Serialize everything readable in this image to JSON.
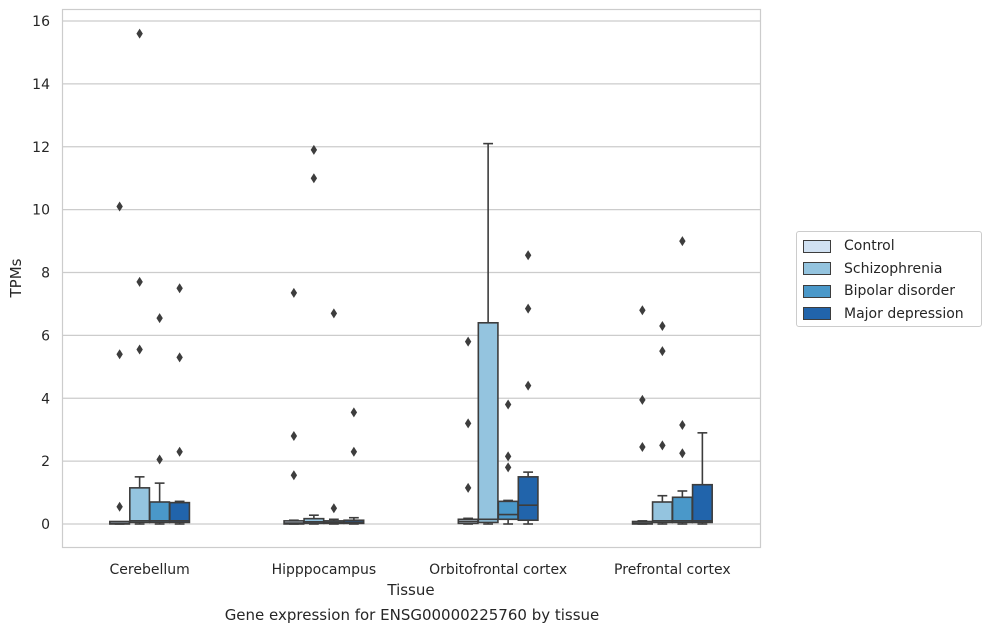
{
  "chart_data": {
    "type": "box",
    "caption": "Gene expression for ENSG00000225760 by tissue",
    "xlabel": "Tissue",
    "ylabel": "TPMs",
    "ylim": [
      -0.75,
      16.4
    ],
    "yticks": [
      0,
      2,
      4,
      6,
      8,
      10,
      12,
      14,
      16
    ],
    "grid": true,
    "legend_position": "right",
    "categories": [
      "Cerebellum",
      "Hipppocampus",
      "Orbitofrontal cortex",
      "Prefrontal cortex"
    ],
    "series": [
      {
        "name": "Control",
        "color": "#d0e1f2",
        "boxes": [
          {
            "q1": 0.0,
            "median": 0.02,
            "q3": 0.05,
            "whislo": 0.0,
            "whishi": 0.05,
            "fliers": [
              0.55,
              5.4,
              10.1
            ]
          },
          {
            "q1": 0.0,
            "median": 0.03,
            "q3": 0.1,
            "whislo": 0.0,
            "whishi": 0.12,
            "fliers": [
              1.55,
              2.8,
              7.35
            ]
          },
          {
            "q1": 0.02,
            "median": 0.08,
            "q3": 0.15,
            "whislo": 0.0,
            "whishi": 0.18,
            "fliers": [
              1.15,
              3.2,
              5.8
            ]
          },
          {
            "q1": 0.0,
            "median": 0.03,
            "q3": 0.08,
            "whislo": 0.0,
            "whishi": 0.1,
            "fliers": [
              2.45,
              3.95,
              6.8
            ]
          }
        ]
      },
      {
        "name": "Schizophrenia",
        "color": "#94c4df",
        "boxes": [
          {
            "q1": 0.05,
            "median": 0.1,
            "q3": 1.15,
            "whislo": 0.0,
            "whishi": 1.5,
            "fliers": [
              5.55,
              7.7,
              15.6
            ]
          },
          {
            "q1": 0.02,
            "median": 0.07,
            "q3": 0.17,
            "whislo": 0.0,
            "whishi": 0.28,
            "fliers": [
              11.0,
              11.9
            ]
          },
          {
            "q1": 0.05,
            "median": 0.15,
            "q3": 6.4,
            "whislo": 0.0,
            "whishi": 12.1,
            "fliers": []
          },
          {
            "q1": 0.05,
            "median": 0.1,
            "q3": 0.7,
            "whislo": 0.0,
            "whishi": 0.9,
            "fliers": [
              2.5,
              5.5,
              6.3
            ]
          }
        ]
      },
      {
        "name": "Bipolar disorder",
        "color": "#4a98c9",
        "boxes": [
          {
            "q1": 0.05,
            "median": 0.1,
            "q3": 0.7,
            "whislo": 0.0,
            "whishi": 1.3,
            "fliers": [
              2.05,
              6.55
            ]
          },
          {
            "q1": 0.02,
            "median": 0.05,
            "q3": 0.1,
            "whislo": 0.0,
            "whishi": 0.15,
            "fliers": [
              0.5,
              6.7
            ]
          },
          {
            "q1": 0.15,
            "median": 0.3,
            "q3": 0.72,
            "whislo": 0.0,
            "whishi": 0.75,
            "fliers": [
              1.8,
              2.15,
              3.8
            ]
          },
          {
            "q1": 0.05,
            "median": 0.1,
            "q3": 0.85,
            "whislo": 0.0,
            "whishi": 1.05,
            "fliers": [
              2.25,
              3.15,
              9.0
            ]
          }
        ]
      },
      {
        "name": "Major depression",
        "color": "#2164ab",
        "boxes": [
          {
            "q1": 0.05,
            "median": 0.1,
            "q3": 0.68,
            "whislo": 0.0,
            "whishi": 0.72,
            "fliers": [
              2.3,
              5.3,
              7.5
            ]
          },
          {
            "q1": 0.02,
            "median": 0.06,
            "q3": 0.12,
            "whislo": 0.0,
            "whishi": 0.2,
            "fliers": [
              2.3,
              3.55
            ]
          },
          {
            "q1": 0.12,
            "median": 0.6,
            "q3": 1.5,
            "whislo": 0.0,
            "whishi": 1.65,
            "fliers": [
              4.4,
              6.85,
              8.55
            ]
          },
          {
            "q1": 0.05,
            "median": 0.1,
            "q3": 1.25,
            "whislo": 0.0,
            "whishi": 2.9,
            "fliers": []
          }
        ]
      }
    ]
  }
}
